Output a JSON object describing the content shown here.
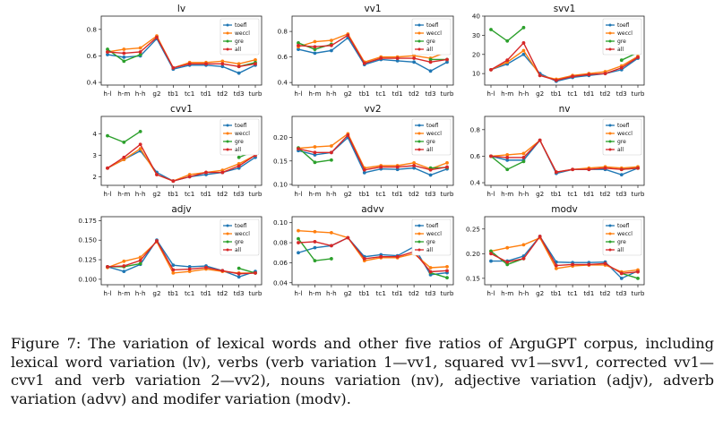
{
  "legend_labels": [
    "toefl",
    "weccl",
    "gre",
    "all"
  ],
  "colors": {
    "toefl": "#1f77b4",
    "weccl": "#ff7f0e",
    "gre": "#2ca02c",
    "all": "#d62728"
  },
  "caption": "Figure 7: The variation of lexical words and other five ratios of ArguGPT corpus, including lexical word variation (lv), verbs (verb variation 1—vv1, squared vv1—svv1, corrected vv1—cvv1 and verb variation 2—vv2), nouns variation (nv), adjective variation (adjv), adverb variation (advv) and modifer variation (modv).",
  "chart_data": [
    {
      "type": "line",
      "title": "lv",
      "legend": "top-right",
      "categories": [
        "h-l",
        "h-m",
        "h-h",
        "g2",
        "tb1",
        "tc1",
        "td1",
        "td2",
        "td3",
        "turb"
      ],
      "yticks": [
        0.4,
        0.6,
        0.8
      ],
      "ylim": [
        0.38,
        0.9
      ],
      "series": [
        {
          "name": "toefl",
          "values": [
            0.61,
            0.59,
            0.6,
            0.73,
            0.5,
            0.53,
            0.53,
            0.52,
            0.47,
            0.53
          ]
        },
        {
          "name": "weccl",
          "values": [
            0.63,
            0.65,
            0.66,
            0.75,
            0.51,
            0.55,
            0.55,
            0.56,
            0.54,
            0.57
          ]
        },
        {
          "name": "gre",
          "values": [
            0.65,
            0.56,
            0.61,
            null,
            null,
            null,
            null,
            null,
            0.52,
            0.55
          ]
        },
        {
          "name": "all",
          "values": [
            0.63,
            0.62,
            0.63,
            0.74,
            0.51,
            0.54,
            0.54,
            0.54,
            0.52,
            0.54
          ]
        }
      ]
    },
    {
      "type": "line",
      "title": "vv1",
      "legend": "top-right",
      "categories": [
        "h-l",
        "h-m",
        "h-h",
        "g2",
        "tb1",
        "tc1",
        "td1",
        "td2",
        "td3",
        "turb"
      ],
      "yticks": [
        0.4,
        0.6,
        0.8
      ],
      "ylim": [
        0.38,
        0.92
      ],
      "series": [
        {
          "name": "toefl",
          "values": [
            0.66,
            0.63,
            0.65,
            0.75,
            0.54,
            0.58,
            0.57,
            0.56,
            0.49,
            0.56
          ]
        },
        {
          "name": "weccl",
          "values": [
            0.68,
            0.72,
            0.73,
            0.78,
            0.56,
            0.6,
            0.6,
            0.61,
            0.59,
            0.64
          ]
        },
        {
          "name": "gre",
          "values": [
            0.71,
            0.66,
            0.7,
            null,
            null,
            null,
            null,
            null,
            0.58,
            0.58
          ]
        },
        {
          "name": "all",
          "values": [
            0.69,
            0.68,
            0.69,
            0.77,
            0.55,
            0.59,
            0.59,
            0.59,
            0.56,
            0.58
          ]
        }
      ]
    },
    {
      "type": "line",
      "title": "svv1",
      "legend": "top-right",
      "categories": [
        "h-l",
        "h-m",
        "h-h",
        "g2",
        "tb1",
        "tc1",
        "td1",
        "td2",
        "td3",
        "turb"
      ],
      "yticks": [
        10,
        20,
        30,
        40
      ],
      "ylim": [
        4,
        40
      ],
      "series": [
        {
          "name": "toefl",
          "values": [
            12,
            15,
            20,
            10,
            6,
            8,
            9,
            10,
            12,
            18
          ]
        },
        {
          "name": "weccl",
          "values": [
            12,
            16,
            22,
            9,
            7,
            9,
            10,
            11,
            14,
            19
          ]
        },
        {
          "name": "gre",
          "values": [
            33,
            27,
            34,
            null,
            null,
            null,
            null,
            null,
            17,
            21
          ]
        },
        {
          "name": "all",
          "values": [
            12,
            17,
            26,
            9,
            6.5,
            8.5,
            9.5,
            10,
            13,
            18.5
          ]
        }
      ]
    },
    {
      "type": "line",
      "title": "cvv1",
      "legend": "top-right",
      "categories": [
        "h-l",
        "h-m",
        "h-h",
        "g2",
        "tb1",
        "tc1",
        "td1",
        "td2",
        "td3",
        "turb"
      ],
      "yticks": [
        2,
        3,
        4
      ],
      "ylim": [
        1.6,
        4.8
      ],
      "series": [
        {
          "name": "toefl",
          "values": [
            2.4,
            2.8,
            3.2,
            2.2,
            1.8,
            2.0,
            2.1,
            2.2,
            2.4,
            2.9
          ]
        },
        {
          "name": "weccl",
          "values": [
            2.4,
            2.8,
            3.3,
            2.1,
            1.8,
            2.1,
            2.2,
            2.3,
            2.6,
            3.0
          ]
        },
        {
          "name": "gre",
          "values": [
            3.9,
            3.6,
            4.1,
            null,
            null,
            null,
            null,
            null,
            2.9,
            3.2
          ]
        },
        {
          "name": "all",
          "values": [
            2.4,
            2.9,
            3.5,
            2.1,
            1.8,
            2.0,
            2.2,
            2.2,
            2.5,
            3.0
          ]
        }
      ]
    },
    {
      "type": "line",
      "title": "vv2",
      "legend": "top-right",
      "categories": [
        "h-l",
        "h-m",
        "h-h",
        "g2",
        "tb1",
        "tc1",
        "td1",
        "td2",
        "td3",
        "turb"
      ],
      "yticks": [
        0.1,
        0.15,
        0.2
      ],
      "ylim": [
        0.098,
        0.245
      ],
      "series": [
        {
          "name": "toefl",
          "values": [
            0.172,
            0.163,
            0.168,
            0.2,
            0.125,
            0.133,
            0.132,
            0.135,
            0.12,
            0.133
          ]
        },
        {
          "name": "weccl",
          "values": [
            0.177,
            0.18,
            0.182,
            0.208,
            0.135,
            0.14,
            0.14,
            0.146,
            0.133,
            0.146
          ]
        },
        {
          "name": "gre",
          "values": [
            0.178,
            0.147,
            0.152,
            null,
            null,
            null,
            null,
            null,
            0.135,
            0.136
          ]
        },
        {
          "name": "all",
          "values": [
            0.176,
            0.168,
            0.168,
            0.205,
            0.131,
            0.137,
            0.137,
            0.14,
            0.131,
            0.137
          ]
        }
      ]
    },
    {
      "type": "line",
      "title": "nv",
      "legend": "top-right",
      "categories": [
        "h-l",
        "h-m",
        "h-h",
        "g2",
        "tb1",
        "tc1",
        "td1",
        "td2",
        "td3",
        "turb"
      ],
      "yticks": [
        0.4,
        0.6,
        0.8
      ],
      "ylim": [
        0.38,
        0.9
      ],
      "series": [
        {
          "name": "toefl",
          "values": [
            0.6,
            0.57,
            0.57,
            0.72,
            0.47,
            0.5,
            0.5,
            0.5,
            0.46,
            0.51
          ]
        },
        {
          "name": "weccl",
          "values": [
            0.6,
            0.61,
            0.62,
            0.72,
            0.48,
            0.5,
            0.51,
            0.52,
            0.51,
            0.52
          ]
        },
        {
          "name": "gre",
          "values": [
            0.6,
            0.5,
            0.56,
            null,
            null,
            null,
            null,
            null,
            0.5,
            0.51
          ]
        },
        {
          "name": "all",
          "values": [
            0.6,
            0.59,
            0.59,
            0.72,
            0.48,
            0.5,
            0.5,
            0.51,
            0.5,
            0.51
          ]
        }
      ]
    },
    {
      "type": "line",
      "title": "adjv",
      "legend": "top-right",
      "categories": [
        "h-l",
        "h-m",
        "h-h",
        "g2",
        "tb1",
        "tc1",
        "td1",
        "td2",
        "td3",
        "turb"
      ],
      "yticks": [
        0.1,
        0.125,
        0.15,
        0.175
      ],
      "ylim": [
        0.093,
        0.18
      ],
      "series": [
        {
          "name": "toefl",
          "values": [
            0.116,
            0.11,
            0.119,
            0.15,
            0.118,
            0.116,
            0.117,
            0.111,
            0.103,
            0.11
          ]
        },
        {
          "name": "weccl",
          "values": [
            0.115,
            0.123,
            0.128,
            0.148,
            0.108,
            0.11,
            0.113,
            0.11,
            0.108,
            0.108
          ]
        },
        {
          "name": "gre",
          "values": [
            0.116,
            0.116,
            0.12,
            null,
            null,
            null,
            null,
            null,
            0.114,
            0.108
          ]
        },
        {
          "name": "all",
          "values": [
            0.116,
            0.117,
            0.124,
            0.149,
            0.112,
            0.113,
            0.115,
            0.111,
            0.107,
            0.108
          ]
        }
      ]
    },
    {
      "type": "line",
      "title": "advv",
      "legend": "top-right",
      "categories": [
        "h-l",
        "h-m",
        "h-h",
        "g2",
        "tb1",
        "tc1",
        "td1",
        "td2",
        "td3",
        "turb"
      ],
      "yticks": [
        0.04,
        0.06,
        0.08,
        0.1
      ],
      "ylim": [
        0.038,
        0.106
      ],
      "series": [
        {
          "name": "toefl",
          "values": [
            0.07,
            0.075,
            0.077,
            0.085,
            0.066,
            0.068,
            0.067,
            0.076,
            0.048,
            0.05
          ]
        },
        {
          "name": "weccl",
          "values": [
            0.092,
            0.091,
            0.09,
            0.085,
            0.062,
            0.065,
            0.065,
            0.069,
            0.055,
            0.056
          ]
        },
        {
          "name": "gre",
          "values": [
            0.084,
            0.062,
            0.064,
            null,
            null,
            null,
            null,
            null,
            0.05,
            0.045
          ]
        },
        {
          "name": "all",
          "values": [
            0.08,
            0.081,
            0.077,
            0.085,
            0.064,
            0.066,
            0.066,
            0.071,
            0.051,
            0.052
          ]
        }
      ]
    },
    {
      "type": "line",
      "title": "modv",
      "legend": "top-right",
      "categories": [
        "h-l",
        "h-m",
        "h-h",
        "g2",
        "tb1",
        "tc1",
        "td1",
        "td2",
        "td3",
        "turb"
      ],
      "yticks": [
        0.15,
        0.2,
        0.25
      ],
      "ylim": [
        0.137,
        0.275
      ],
      "series": [
        {
          "name": "toefl",
          "values": [
            0.185,
            0.185,
            0.195,
            0.235,
            0.183,
            0.182,
            0.182,
            0.183,
            0.15,
            0.165
          ]
        },
        {
          "name": "weccl",
          "values": [
            0.205,
            0.212,
            0.218,
            0.232,
            0.17,
            0.175,
            0.177,
            0.177,
            0.163,
            0.167
          ]
        },
        {
          "name": "gre",
          "values": [
            0.205,
            0.178,
            0.19,
            null,
            null,
            null,
            null,
            null,
            0.16,
            0.15
          ]
        },
        {
          "name": "all",
          "values": [
            0.2,
            0.183,
            0.19,
            0.235,
            0.176,
            0.178,
            0.178,
            0.18,
            0.16,
            0.163
          ]
        }
      ]
    }
  ]
}
